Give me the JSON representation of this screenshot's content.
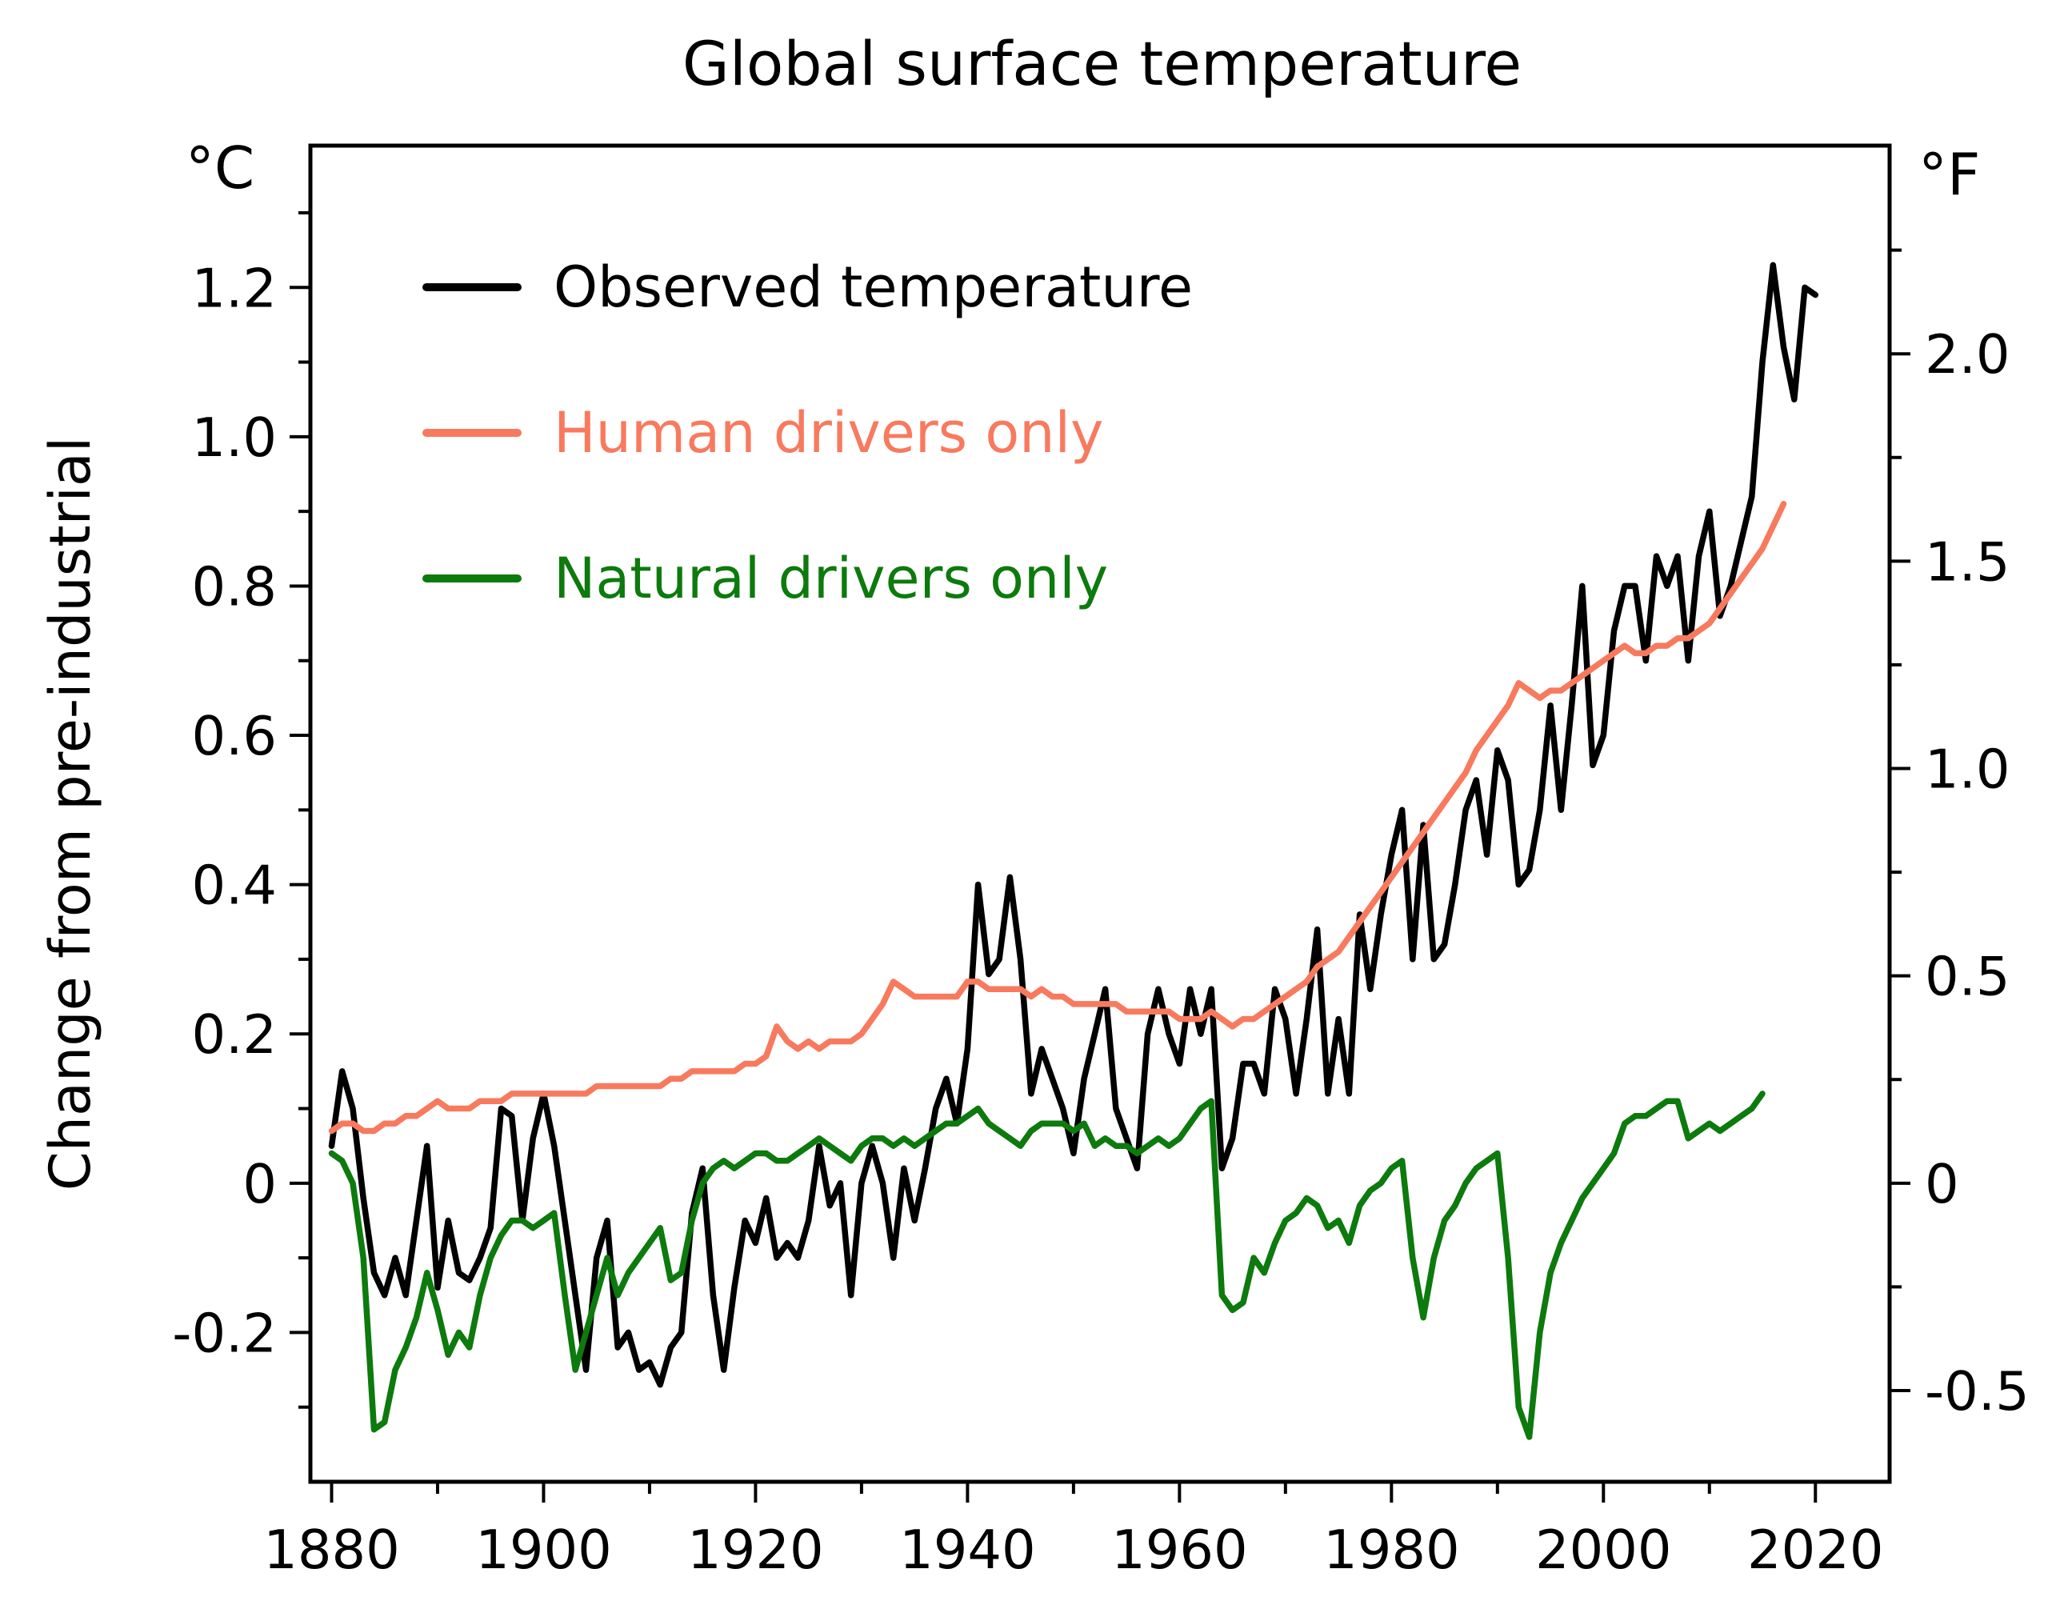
{
  "chart_data": {
    "type": "line",
    "title": "Global surface temperature",
    "ylabel_left": "Change from pre-industrial",
    "unit_left": "°C",
    "unit_right": "°F",
    "grid": false,
    "legend_position": "top-left-inside",
    "xlim": [
      1878,
      2027
    ],
    "ylim_c": [
      -0.4,
      1.39
    ],
    "x_ticks": [
      {
        "year": 1880,
        "label": "1880"
      },
      {
        "year": 1900,
        "label": "1900"
      },
      {
        "year": 1920,
        "label": "1920"
      },
      {
        "year": 1940,
        "label": "1940"
      },
      {
        "year": 1960,
        "label": "1960"
      },
      {
        "year": 1980,
        "label": "1980"
      },
      {
        "year": 2000,
        "label": "2000"
      },
      {
        "year": 2020,
        "label": "2020"
      }
    ],
    "x_minor_ticks": [
      1890,
      1910,
      1930,
      1950,
      1970,
      1990,
      2010
    ],
    "y_ticks_c": [
      {
        "v": 1.2,
        "label": "1.2"
      },
      {
        "v": 1.0,
        "label": "1.0"
      },
      {
        "v": 0.8,
        "label": "0.8"
      },
      {
        "v": 0.6,
        "label": "0.6"
      },
      {
        "v": 0.4,
        "label": "0.4"
      },
      {
        "v": 0.2,
        "label": "0.2"
      },
      {
        "v": 0,
        "label": "0"
      },
      {
        "v": -0.2,
        "label": "-0.2"
      }
    ],
    "y_minor_c": [
      1.3,
      1.1,
      0.9,
      0.7,
      0.5,
      0.3,
      0.1,
      -0.1,
      -0.3
    ],
    "y_ticks_f": [
      {
        "v": 2.0,
        "label": "2.0"
      },
      {
        "v": 1.5,
        "label": "1.5"
      },
      {
        "v": 1.0,
        "label": "1.0"
      },
      {
        "v": 0.5,
        "label": "0.5"
      },
      {
        "v": 0,
        "label": "0"
      },
      {
        "v": -0.5,
        "label": "-0.5"
      }
    ],
    "y_minor_f": [
      2.25,
      1.75,
      1.25,
      0.75,
      0.25,
      -0.25
    ],
    "series": [
      {
        "name": "Observed temperature",
        "color": "#000000",
        "x_start": 1880,
        "x_step": 1,
        "values": [
          0.05,
          0.15,
          0.1,
          -0.02,
          -0.12,
          -0.15,
          -0.1,
          -0.15,
          -0.05,
          0.05,
          -0.14,
          -0.05,
          -0.12,
          -0.13,
          -0.1,
          -0.06,
          0.1,
          0.09,
          -0.05,
          0.06,
          0.12,
          0.05,
          -0.05,
          -0.15,
          -0.25,
          -0.1,
          -0.05,
          -0.22,
          -0.2,
          -0.25,
          -0.24,
          -0.27,
          -0.22,
          -0.2,
          -0.04,
          0.02,
          -0.15,
          -0.25,
          -0.14,
          -0.05,
          -0.08,
          -0.02,
          -0.1,
          -0.08,
          -0.1,
          -0.05,
          0.05,
          -0.03,
          0.0,
          -0.15,
          0.0,
          0.05,
          0.0,
          -0.1,
          0.02,
          -0.05,
          0.02,
          0.1,
          0.14,
          0.08,
          0.18,
          0.4,
          0.28,
          0.3,
          0.41,
          0.3,
          0.12,
          0.18,
          0.14,
          0.1,
          0.04,
          0.14,
          0.2,
          0.26,
          0.1,
          0.06,
          0.02,
          0.2,
          0.26,
          0.2,
          0.16,
          0.26,
          0.2,
          0.26,
          0.02,
          0.06,
          0.16,
          0.16,
          0.12,
          0.26,
          0.22,
          0.12,
          0.22,
          0.34,
          0.12,
          0.22,
          0.12,
          0.36,
          0.26,
          0.36,
          0.44,
          0.5,
          0.3,
          0.48,
          0.3,
          0.32,
          0.4,
          0.5,
          0.54,
          0.44,
          0.58,
          0.54,
          0.4,
          0.42,
          0.5,
          0.64,
          0.5,
          0.64,
          0.8,
          0.56,
          0.6,
          0.74,
          0.8,
          0.8,
          0.7,
          0.84,
          0.8,
          0.84,
          0.7,
          0.84,
          0.9,
          0.76,
          0.8,
          0.86,
          0.92,
          1.1,
          1.23,
          1.12,
          1.05,
          1.2,
          1.19
        ]
      },
      {
        "name": "Human drivers only",
        "color": "#f87a5e",
        "x_start": 1880,
        "x_step": 1,
        "values": [
          0.07,
          0.08,
          0.08,
          0.07,
          0.07,
          0.08,
          0.08,
          0.09,
          0.09,
          0.1,
          0.11,
          0.1,
          0.1,
          0.1,
          0.11,
          0.11,
          0.11,
          0.12,
          0.12,
          0.12,
          0.12,
          0.12,
          0.12,
          0.12,
          0.12,
          0.13,
          0.13,
          0.13,
          0.13,
          0.13,
          0.13,
          0.13,
          0.14,
          0.14,
          0.15,
          0.15,
          0.15,
          0.15,
          0.15,
          0.16,
          0.16,
          0.17,
          0.21,
          0.19,
          0.18,
          0.19,
          0.18,
          0.19,
          0.19,
          0.19,
          0.2,
          0.22,
          0.24,
          0.27,
          0.26,
          0.25,
          0.25,
          0.25,
          0.25,
          0.25,
          0.27,
          0.27,
          0.26,
          0.26,
          0.26,
          0.26,
          0.25,
          0.26,
          0.25,
          0.25,
          0.24,
          0.24,
          0.24,
          0.24,
          0.24,
          0.23,
          0.23,
          0.23,
          0.23,
          0.23,
          0.22,
          0.22,
          0.22,
          0.23,
          0.22,
          0.21,
          0.22,
          0.22,
          0.23,
          0.24,
          0.25,
          0.26,
          0.27,
          0.29,
          0.3,
          0.31,
          0.33,
          0.35,
          0.37,
          0.39,
          0.41,
          0.43,
          0.45,
          0.47,
          0.49,
          0.51,
          0.53,
          0.55,
          0.58,
          0.6,
          0.62,
          0.64,
          0.67,
          0.66,
          0.65,
          0.66,
          0.66,
          0.67,
          0.68,
          0.69,
          0.7,
          0.71,
          0.72,
          0.71,
          0.71,
          0.72,
          0.72,
          0.73,
          0.73,
          0.74,
          0.75,
          0.77,
          0.79,
          0.81,
          0.83,
          0.85,
          0.88,
          0.91
        ]
      },
      {
        "name": "Natural drivers only",
        "color": "#0d7a0d",
        "x_start": 1880,
        "x_step": 1,
        "values": [
          0.04,
          0.03,
          0.0,
          -0.1,
          -0.33,
          -0.32,
          -0.25,
          -0.22,
          -0.18,
          -0.12,
          -0.17,
          -0.23,
          -0.2,
          -0.22,
          -0.15,
          -0.1,
          -0.07,
          -0.05,
          -0.05,
          -0.06,
          -0.05,
          -0.04,
          -0.15,
          -0.25,
          -0.2,
          -0.15,
          -0.1,
          -0.15,
          -0.12,
          -0.1,
          -0.08,
          -0.06,
          -0.13,
          -0.12,
          -0.05,
          0.0,
          0.02,
          0.03,
          0.02,
          0.03,
          0.04,
          0.04,
          0.03,
          0.03,
          0.04,
          0.05,
          0.06,
          0.05,
          0.04,
          0.03,
          0.05,
          0.06,
          0.06,
          0.05,
          0.06,
          0.05,
          0.06,
          0.07,
          0.08,
          0.08,
          0.09,
          0.1,
          0.08,
          0.07,
          0.06,
          0.05,
          0.07,
          0.08,
          0.08,
          0.08,
          0.07,
          0.08,
          0.05,
          0.06,
          0.05,
          0.05,
          0.04,
          0.05,
          0.06,
          0.05,
          0.06,
          0.08,
          0.1,
          0.11,
          -0.15,
          -0.17,
          -0.16,
          -0.1,
          -0.12,
          -0.08,
          -0.05,
          -0.04,
          -0.02,
          -0.03,
          -0.06,
          -0.05,
          -0.08,
          -0.03,
          -0.01,
          0.0,
          0.02,
          0.03,
          -0.1,
          -0.18,
          -0.1,
          -0.05,
          -0.03,
          0.0,
          0.02,
          0.03,
          0.04,
          -0.1,
          -0.3,
          -0.34,
          -0.2,
          -0.12,
          -0.08,
          -0.05,
          -0.02,
          0.0,
          0.02,
          0.04,
          0.08,
          0.09,
          0.09,
          0.1,
          0.11,
          0.11,
          0.06,
          0.07,
          0.08,
          0.07,
          0.08,
          0.09,
          0.1,
          0.12
        ]
      }
    ]
  }
}
